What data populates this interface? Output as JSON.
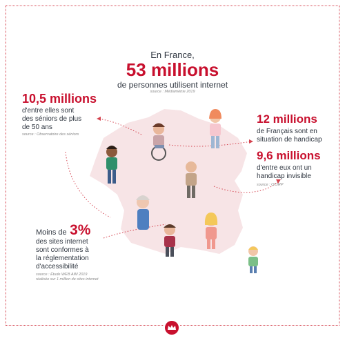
{
  "header": {
    "line1": "En France,",
    "headline": "53 millions",
    "line2": "de personnes utilisent internet",
    "source": "source : Médiamétrie 2019"
  },
  "seniors": {
    "figure": "10,5 millions",
    "text_lines": [
      "d'entre elles sont",
      "des séniors de plus",
      "de 50 ans"
    ],
    "source": "source : Observatoire des séniors"
  },
  "handicap": {
    "figure": "12 millions",
    "text_lines": [
      "de Français sont en",
      "situation de handicap"
    ]
  },
  "invisible": {
    "figure": "9,6 millions",
    "text_lines": [
      "d'entre eux ont un",
      "handicap invisible"
    ],
    "source": "source : OCIRP"
  },
  "accessibility": {
    "prefix": "Moins de",
    "figure": "3%",
    "text_lines": [
      "des sites internet",
      "sont conformes à",
      "la réglementation",
      "d'accessibilité"
    ],
    "source_lines": [
      "source : Étude WEB AIM 2019",
      "réalisée sur 1 million de sites internet"
    ]
  },
  "colors": {
    "accent": "#c8102e",
    "map": "#f7e4e6",
    "text": "#2f3640"
  },
  "icons": [
    "france-map-icon",
    "person-icon",
    "wheelchair-user-icon",
    "crown-logo-icon"
  ]
}
